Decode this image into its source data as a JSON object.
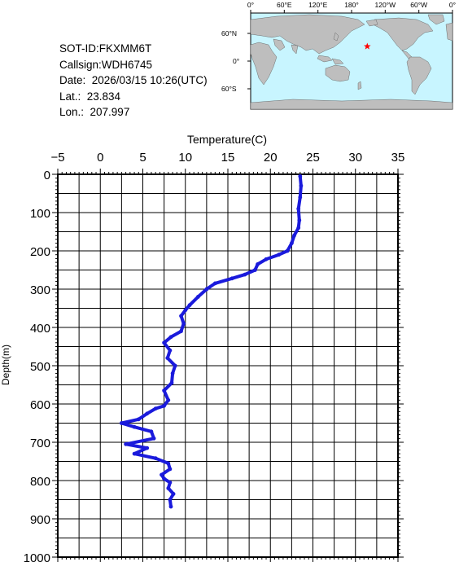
{
  "info": {
    "sot_id": "SOT-ID:FKXMM6T",
    "callsign": "Callsign:WDH6745",
    "date": "Date:  2026/03/15 10:26(UTC)",
    "lat": "Lat.:  23.834",
    "lon": "Lon.:  207.997"
  },
  "map": {
    "lon_labels": [
      "0°",
      "60°E",
      "120°E",
      "180°",
      "120°W",
      "60°W",
      "0°"
    ],
    "lat_labels": [
      "60°N",
      "0°",
      "60°S"
    ],
    "ocean_color": "#c8f5ff",
    "land_color": "#bebebe",
    "marker": {
      "icon": "star",
      "color": "#ff0000",
      "lat": 23.834,
      "lon": 207.997
    }
  },
  "chart_data": {
    "type": "line",
    "xlabel": "Temperature(C)",
    "ylabel": "Depth(m)",
    "xlim": [
      -5,
      35
    ],
    "ylim": [
      1000,
      0
    ],
    "x_ticks": [
      "-5",
      "0",
      "5",
      "10",
      "15",
      "20",
      "25",
      "30",
      "35"
    ],
    "y_ticks": [
      "0",
      "100",
      "200",
      "300",
      "400",
      "500",
      "600",
      "700",
      "800",
      "900",
      "1000"
    ],
    "grid": true,
    "line_color": "#1a1adc",
    "series": [
      {
        "points": [
          [
            23.5,
            5
          ],
          [
            23.6,
            30
          ],
          [
            23.5,
            60
          ],
          [
            23.3,
            90
          ],
          [
            23.4,
            120
          ],
          [
            23.3,
            140
          ],
          [
            22.8,
            160
          ],
          [
            22.5,
            180
          ],
          [
            22.0,
            200
          ],
          [
            21.0,
            210
          ],
          [
            19.5,
            222
          ],
          [
            18.5,
            235
          ],
          [
            18.2,
            250
          ],
          [
            17.0,
            262
          ],
          [
            15.5,
            272
          ],
          [
            13.5,
            285
          ],
          [
            12.5,
            300
          ],
          [
            11.5,
            320
          ],
          [
            10.5,
            342
          ],
          [
            10.0,
            355
          ],
          [
            9.5,
            370
          ],
          [
            9.8,
            390
          ],
          [
            9.5,
            410
          ],
          [
            8.3,
            425
          ],
          [
            7.5,
            440
          ],
          [
            8.2,
            460
          ],
          [
            7.9,
            480
          ],
          [
            8.8,
            500
          ],
          [
            8.5,
            520
          ],
          [
            8.4,
            545
          ],
          [
            7.5,
            565
          ],
          [
            8.0,
            590
          ],
          [
            7.5,
            605
          ],
          [
            6.5,
            612
          ],
          [
            5.5,
            625
          ],
          [
            4.5,
            640
          ],
          [
            2.5,
            650
          ],
          [
            4.0,
            660
          ],
          [
            6.0,
            672
          ],
          [
            6.3,
            690
          ],
          [
            3.0,
            705
          ],
          [
            5.5,
            715
          ],
          [
            4.0,
            730
          ],
          [
            6.5,
            742
          ],
          [
            8.0,
            755
          ],
          [
            8.2,
            770
          ],
          [
            7.2,
            785
          ],
          [
            7.5,
            795
          ],
          [
            8.2,
            805
          ],
          [
            8.0,
            820
          ],
          [
            8.6,
            835
          ],
          [
            8.2,
            850
          ],
          [
            8.3,
            868
          ]
        ]
      }
    ]
  }
}
